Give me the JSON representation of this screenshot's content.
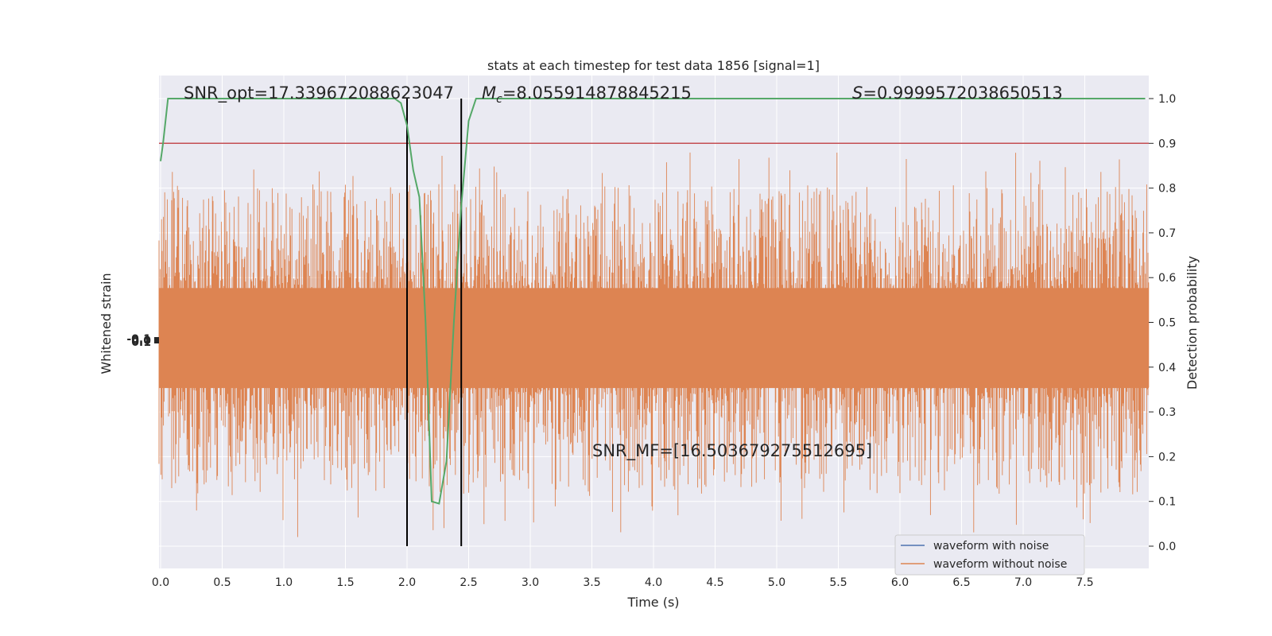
{
  "chart_data": {
    "type": "line",
    "title": "stats at each timestep for test data 1856 [signal=1]",
    "xlabel": "Time (s)",
    "ylabel_left": "Whitened strain",
    "ylabel_right": "Detection probability",
    "xlim": [
      0,
      8
    ],
    "ylim_right": [
      -0.05,
      1.05
    ],
    "x_ticks": [
      "0.0",
      "0.5",
      "1.0",
      "1.5",
      "2.0",
      "2.5",
      "3.0",
      "3.5",
      "4.0",
      "4.5",
      "5.0",
      "5.5",
      "6.0",
      "6.5",
      "7.0",
      "7.5"
    ],
    "y_ticks_right": [
      "0.0",
      "0.1",
      "0.2",
      "0.3",
      "0.4",
      "0.5",
      "0.6",
      "0.7",
      "0.8",
      "0.9",
      "1.0"
    ],
    "grid": true,
    "annotations": {
      "snr_opt": "SNR_opt=17.339672088623047",
      "mc_symbol": "M",
      "mc_subscript": "c",
      "mc_value": "=8.055914878845215",
      "s_symbol": "S",
      "s_value": "=0.9999572038650513",
      "snr_mf": "SNR_MF=[16.503679275512695]"
    },
    "threshold": {
      "y": 0.9,
      "color": "#c44e52"
    },
    "vlines_x": [
      2.0,
      2.44
    ],
    "noise_band": {
      "center": 0.46,
      "typical_upper": 0.63,
      "typical_lower": 0.3,
      "peak_upper": 0.88,
      "peak_lower": 0.02,
      "color": "#dd8452"
    },
    "series": [
      {
        "name": "waveform with noise",
        "color": "#4c72b0"
      },
      {
        "name": "waveform without noise",
        "color": "#dd8452"
      },
      {
        "name": "detection probability",
        "color": "#55a868",
        "x": [
          0.0,
          0.02,
          0.06,
          0.15,
          0.5,
          1.0,
          1.5,
          1.9,
          1.95,
          2.0,
          2.05,
          2.1,
          2.15,
          2.2,
          2.26,
          2.32,
          2.38,
          2.44,
          2.5,
          2.56,
          2.62,
          3.0,
          4.0,
          5.0,
          6.0,
          7.0,
          7.99
        ],
        "y": [
          0.86,
          0.9,
          1.0,
          1.0,
          1.0,
          1.0,
          1.0,
          1.0,
          0.99,
          0.94,
          0.84,
          0.78,
          0.5,
          0.1,
          0.095,
          0.19,
          0.5,
          0.76,
          0.95,
          1.0,
          1.0,
          1.0,
          1.0,
          1.0,
          1.0,
          1.0,
          1.0
        ]
      }
    ],
    "left_axis_ticks": [
      "-0.1",
      "0.0",
      "0.1"
    ]
  },
  "colors": {
    "plot_background": "#eaeaf2",
    "grid": "#ffffff",
    "text": "#262626"
  }
}
